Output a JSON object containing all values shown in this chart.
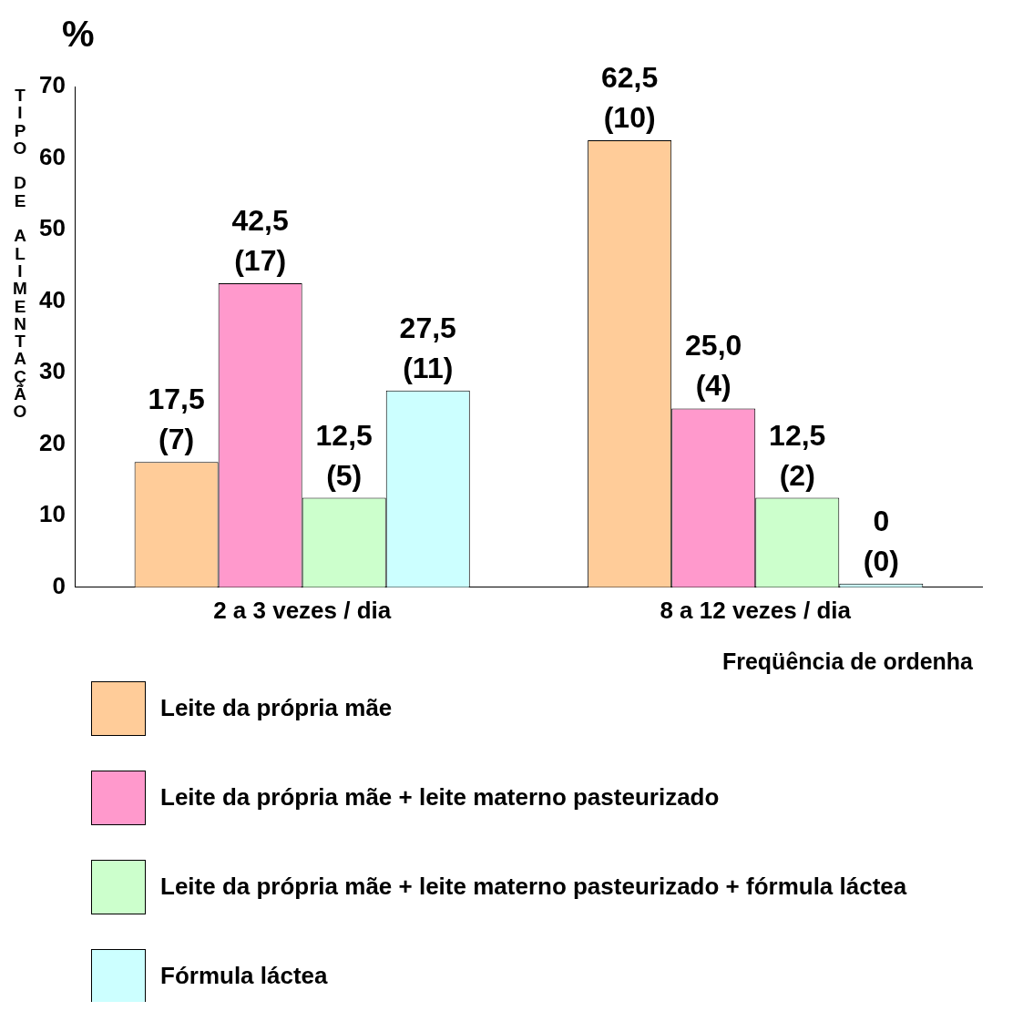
{
  "chart_data": {
    "type": "bar",
    "xlabel": "Freqüência de ordenha",
    "ylabel": "TIPO DE ALIMENTAÇÃO",
    "annotations": [
      "%"
    ],
    "categories": [
      "2 a 3 vezes / dia",
      "8 a 12 vezes / dia"
    ],
    "series": [
      {
        "name": "Leite  da própria mãe",
        "color": "#ffcc99",
        "values": [
          17.5,
          62.5
        ],
        "value_labels": [
          "17,5 (7)",
          "62,5 (10)"
        ]
      },
      {
        "name": "Leite da própria mãe  +  leite materno pasteurizado",
        "color": "#ff99cc",
        "values": [
          42.5,
          25.0
        ],
        "value_labels": [
          "42,5 (17)",
          "25,0 (4)"
        ]
      },
      {
        "name": "Leite da própria mãe + leite  materno pasteurizado  +  fórmula láctea",
        "color": "#ccffcc",
        "values": [
          12.5,
          12.5
        ],
        "value_labels": [
          "12,5 (5)",
          "12,5 (2)"
        ]
      },
      {
        "name": "Fórmula  láctea",
        "color": "#ccffff",
        "values": [
          27.5,
          0
        ],
        "value_labels": [
          "27,5 (11)",
          "0 (0)"
        ]
      }
    ],
    "ylim": [
      0,
      70
    ],
    "yticks": [
      0,
      10,
      20,
      30,
      40,
      50,
      60,
      70
    ],
    "grid": false,
    "legend": "bottom"
  }
}
